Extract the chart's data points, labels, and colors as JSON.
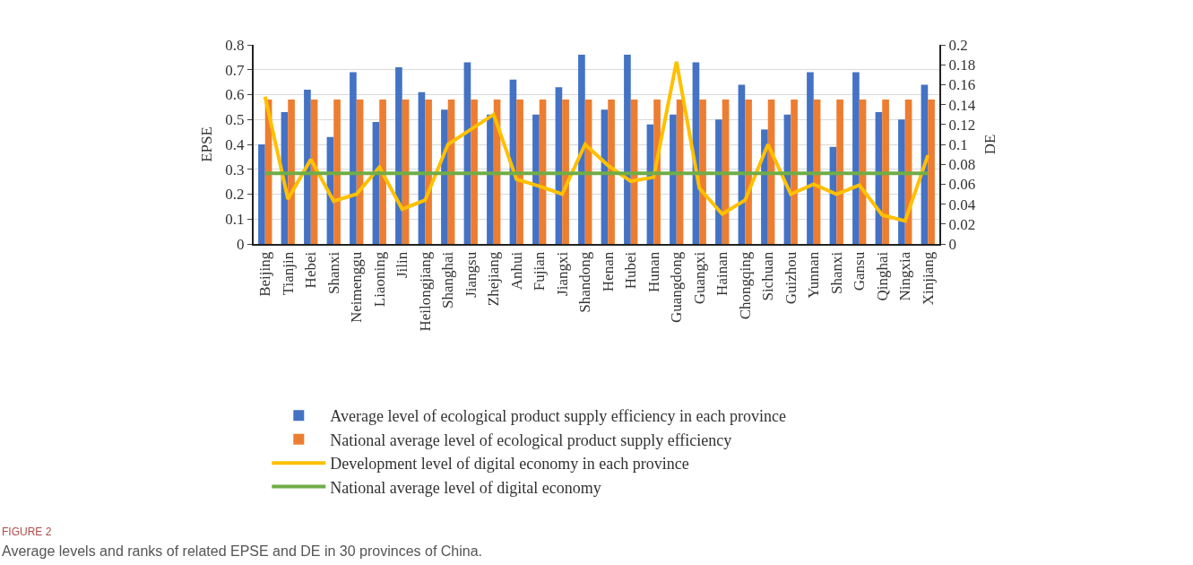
{
  "chart_data": {
    "type": "bar",
    "categories": [
      "Beijing",
      "Tianjin",
      "Hebei",
      "Shanxi",
      "Neimenggu",
      "Liaoning",
      "Jilin",
      "Heilongjiang",
      "Shanghai",
      "Jiangsu",
      "Zhejiang",
      "Anhui",
      "Fujian",
      "Jiangxi",
      "Shandong",
      "Henan",
      "Hubei",
      "Hunan",
      "Guangdong",
      "Guangxi",
      "Hainan",
      "Chongqing",
      "Sichuan",
      "Guizhou",
      "Yunnan",
      "Shanxi",
      "Gansu",
      "Qinghai",
      "Ningxia",
      "Xinjiang"
    ],
    "series": [
      {
        "name": "Average level of ecological product supply efficiency in each province",
        "color": "#4472c4",
        "values": [
          0.4,
          0.53,
          0.62,
          0.43,
          0.69,
          0.49,
          0.71,
          0.61,
          0.54,
          0.73,
          0.52,
          0.66,
          0.52,
          0.63,
          0.76,
          0.54,
          0.76,
          0.48,
          0.52,
          0.73,
          0.5,
          0.64,
          0.46,
          0.52,
          0.69,
          0.39,
          0.69,
          0.53,
          0.5,
          0.64
        ]
      },
      {
        "name": "National average level of ecological product supply efficiency",
        "color": "#ed7d31",
        "values": [
          0.58,
          0.58,
          0.58,
          0.58,
          0.58,
          0.58,
          0.58,
          0.58,
          0.58,
          0.58,
          0.58,
          0.58,
          0.58,
          0.58,
          0.58,
          0.58,
          0.58,
          0.58,
          0.58,
          0.58,
          0.58,
          0.58,
          0.58,
          0.58,
          0.58,
          0.58,
          0.58,
          0.58,
          0.58,
          0.58
        ]
      },
      {
        "name": "Development level of digital economy in each province",
        "type": "line",
        "axis": "y2",
        "color": "#ffc000",
        "values": [
          0.148,
          0.045,
          0.085,
          0.043,
          0.05,
          0.077,
          0.035,
          0.044,
          0.1,
          0.115,
          0.13,
          0.065,
          0.058,
          0.05,
          0.1,
          0.079,
          0.063,
          0.067,
          0.183,
          0.056,
          0.03,
          0.044,
          0.1,
          0.05,
          0.06,
          0.05,
          0.059,
          0.029,
          0.023,
          0.089
        ]
      },
      {
        "name": "National average level of digital economy",
        "type": "line",
        "axis": "y2",
        "color": "#70ad47",
        "values": [
          0.071,
          0.071,
          0.071,
          0.071,
          0.071,
          0.071,
          0.071,
          0.071,
          0.071,
          0.071,
          0.071,
          0.071,
          0.071,
          0.071,
          0.071,
          0.071,
          0.071,
          0.071,
          0.071,
          0.071,
          0.071,
          0.071,
          0.071,
          0.071,
          0.071,
          0.071,
          0.071,
          0.071,
          0.071,
          0.071
        ]
      }
    ],
    "ylabel": "EPSE",
    "y2label": "DE",
    "ylim": [
      0,
      0.8
    ],
    "yticks": [
      0,
      0.1,
      0.2,
      0.3,
      0.4,
      0.5,
      0.6,
      0.7,
      0.8
    ],
    "y2lim": [
      0,
      0.2
    ],
    "y2ticks": [
      0,
      0.02,
      0.04,
      0.06,
      0.08,
      0.1,
      0.12,
      0.14,
      0.16,
      0.18,
      0.2
    ],
    "grid": "y",
    "legend": "bottom",
    "marker": "none",
    "line_style": "solid",
    "annotations": [
      "FIGURE 2",
      "Average levels and ranks of related EPSE and DE in 30 provinces of China."
    ]
  }
}
